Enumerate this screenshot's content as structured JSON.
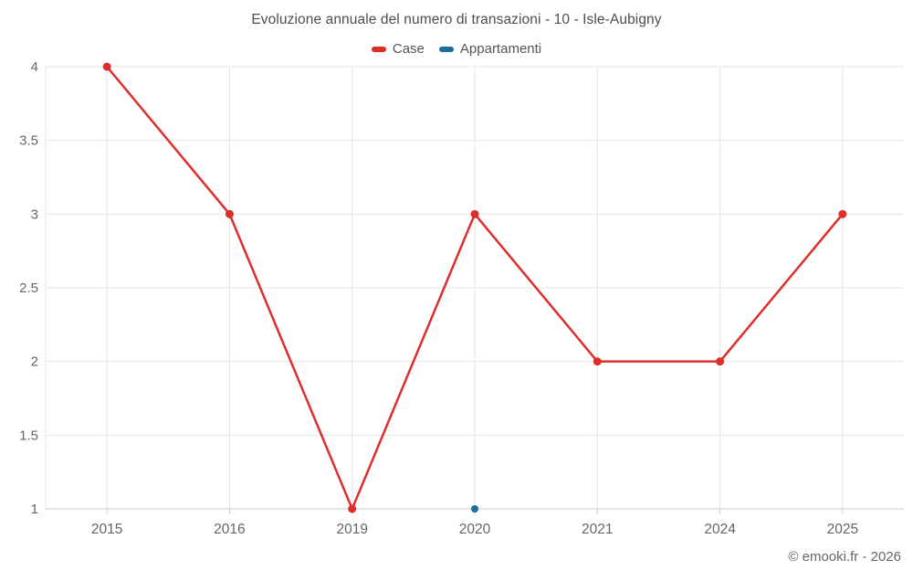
{
  "title": "Evoluzione annuale del numero di transazioni - 10 - Isle-Aubigny",
  "legend": {
    "items": [
      {
        "label": "Case",
        "color": "#dc2f2b"
      },
      {
        "label": "Appartamenti",
        "color": "#1a6d9c"
      }
    ]
  },
  "attribution": "© emooki.fr - 2026",
  "colors": {
    "grid": "#e6e6e6",
    "axis": "#cccccc",
    "tick_label": "#666666",
    "title_text": "#4d4d4d",
    "legend_text": "#555555"
  },
  "chart_data": {
    "type": "line",
    "title": "Evoluzione annuale del numero di transazioni - 10 - Isle-Aubigny",
    "categories": [
      "2015",
      "2016",
      "2019",
      "2020",
      "2021",
      "2024",
      "2025"
    ],
    "series": [
      {
        "name": "Case",
        "color": "#dc2f2b",
        "values": [
          4,
          3,
          1,
          3,
          2,
          2,
          3
        ]
      },
      {
        "name": "Appartamenti",
        "color": "#1a6d9c",
        "values": [
          null,
          null,
          null,
          1,
          null,
          null,
          null
        ]
      }
    ],
    "xlabel": "",
    "ylabel": "",
    "ylim": [
      1,
      4
    ],
    "yticks": [
      1,
      1.5,
      2,
      2.5,
      3,
      3.5,
      4
    ],
    "grid": true,
    "legend_position": "top"
  }
}
